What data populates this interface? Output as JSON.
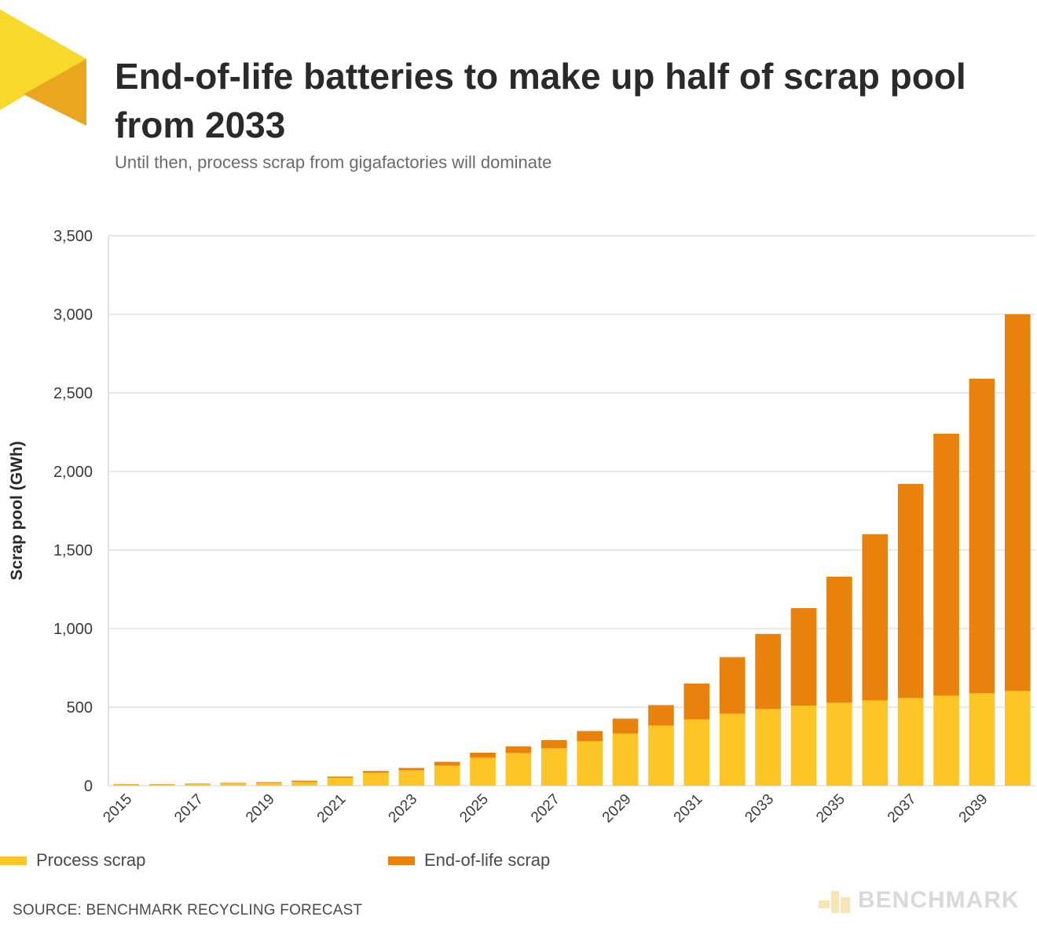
{
  "title": "End-of-life batteries to make up half of scrap pool from 2033",
  "subtitle": "Until then, process scrap from gigafactories will dominate",
  "source": "SOURCE: BENCHMARK RECYCLING FORECAST",
  "brand": "BENCHMARK",
  "colors": {
    "process": "#FDC526",
    "eol": "#E8820C",
    "logo_light": "#F8D92B",
    "logo_dark": "#E9A61E",
    "grid": "#dcdcdc"
  },
  "chart_data": {
    "type": "bar",
    "stacked": true,
    "categories": [
      "2015",
      "2016",
      "2017",
      "2018",
      "2019",
      "2020",
      "2021",
      "2022",
      "2023",
      "2024",
      "2025",
      "2026",
      "2027",
      "2028",
      "2029",
      "2030",
      "2031",
      "2032",
      "2033",
      "2034",
      "2035",
      "2036",
      "2037",
      "2038",
      "2039",
      "2040"
    ],
    "x_tick_labels": [
      "2015",
      "2017",
      "2019",
      "2021",
      "2023",
      "2025",
      "2027",
      "2029",
      "2031",
      "2033",
      "2035",
      "2037",
      "2039"
    ],
    "series": [
      {
        "name": "Process scrap",
        "color": "#FDC526",
        "values": [
          8,
          8,
          10,
          14,
          18,
          25,
          50,
          82,
          98,
          128,
          178,
          208,
          238,
          283,
          332,
          383,
          422,
          458,
          488,
          510,
          528,
          543,
          558,
          573,
          588,
          603
        ]
      },
      {
        "name": "End-of-life scrap",
        "color": "#E8820C",
        "values": [
          2,
          2,
          3,
          4,
          5,
          7,
          8,
          12,
          15,
          24,
          32,
          42,
          52,
          65,
          95,
          130,
          228,
          360,
          478,
          620,
          802,
          1057,
          1362,
          1667,
          2002,
          2397
        ]
      }
    ],
    "ylabel": "Scrap pool (GWh)",
    "xlabel": "",
    "ylim": [
      0,
      3500
    ],
    "y_ticks": [
      0,
      500,
      1000,
      1500,
      2000,
      2500,
      3000,
      3500
    ],
    "y_tick_labels": [
      "0",
      "500",
      "1,000",
      "1,500",
      "2,000",
      "2,500",
      "3,000",
      "3,500"
    ],
    "grid": true,
    "legend_position": "bottom"
  }
}
